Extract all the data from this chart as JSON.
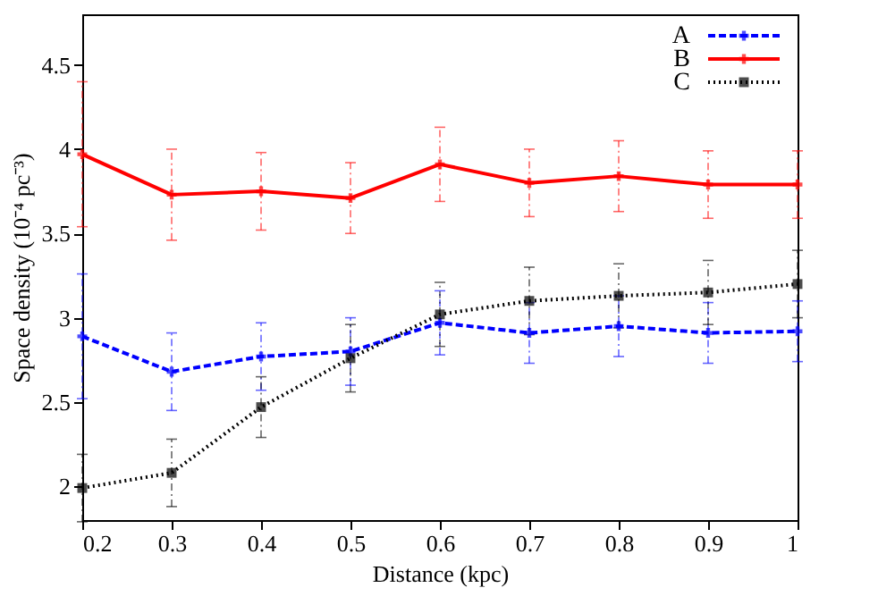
{
  "chart_data": {
    "type": "line",
    "xlabel": "Distance (kpc)",
    "ylabel": "Space density (10⁻⁴ pc⁻³)",
    "x": [
      0.2,
      0.3,
      0.4,
      0.5,
      0.6,
      0.7,
      0.8,
      0.9,
      1.0
    ],
    "xlim": [
      0.2,
      1.0
    ],
    "xticks": [
      0.2,
      0.3,
      0.4,
      0.5,
      0.6,
      0.7,
      0.8,
      0.9,
      1
    ],
    "ylim": [
      1.8,
      4.8
    ],
    "yticks": [
      2,
      2.5,
      3,
      3.5,
      4,
      4.5
    ],
    "grid": false,
    "legend": "top right",
    "series": [
      {
        "name": "A",
        "color": "#0000ff",
        "marker": "cross",
        "line_style": "dashed",
        "values": [
          2.89,
          2.68,
          2.77,
          2.8,
          2.97,
          2.91,
          2.95,
          2.91,
          2.92
        ],
        "errors": [
          0.37,
          0.23,
          0.2,
          0.2,
          0.19,
          0.18,
          0.18,
          0.18,
          0.18
        ]
      },
      {
        "name": "B",
        "color": "#ff0000",
        "marker": "cross",
        "line_style": "solid",
        "values": [
          3.97,
          3.73,
          3.75,
          3.71,
          3.91,
          3.8,
          3.84,
          3.79,
          3.79
        ],
        "errors": [
          0.43,
          0.27,
          0.23,
          0.21,
          0.22,
          0.2,
          0.21,
          0.2,
          0.2
        ]
      },
      {
        "name": "C",
        "color": "#000000",
        "marker": "square",
        "line_style": "dotted",
        "values": [
          1.99,
          2.08,
          2.47,
          2.76,
          3.02,
          3.1,
          3.13,
          3.15,
          3.2
        ],
        "errors": [
          0.2,
          0.2,
          0.18,
          0.2,
          0.19,
          0.2,
          0.19,
          0.19,
          0.2
        ]
      }
    ]
  }
}
